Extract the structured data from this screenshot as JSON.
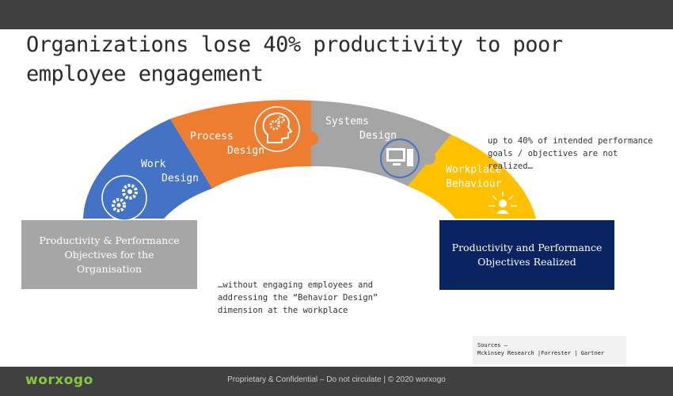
{
  "slide": {
    "title": "Organizations lose 40% productivity to poor employee engagement"
  },
  "arc": {
    "segments": [
      {
        "lines": [
          "Work",
          "Design"
        ],
        "color": "#4472c4",
        "icon": "gears-icon"
      },
      {
        "lines": [
          "Process",
          "Design"
        ],
        "color": "#ed7d31",
        "icon": "head-gears-icon"
      },
      {
        "lines": [
          "Systems",
          "Design"
        ],
        "color": "#a5a5a5",
        "icon": "computer-icon"
      },
      {
        "lines": [
          "Workplace",
          "Behaviour"
        ],
        "color": "#ffc000",
        "icon": "person-focus-icon"
      }
    ]
  },
  "boxes": {
    "left": {
      "lines": [
        "Productivity & Performance",
        "Objectives for the",
        "Organisation"
      ],
      "color": "#a6a6a6"
    },
    "right": {
      "lines": [
        "Productivity and Performance",
        "Objectives Realized"
      ],
      "color": "#0a2361"
    }
  },
  "notes": {
    "bottom": [
      "…without engaging employees and",
      "addressing the “Behavior Design”",
      "dimension at the workplace"
    ],
    "right": [
      "up to  40% of intended performance",
      "goals /  objectives are not",
      "realized…"
    ]
  },
  "sources": {
    "label": "Sources –",
    "text": "Mckinsey Research |Forrester | Gartner"
  },
  "footer": {
    "logo": "worxogo",
    "text": "Proprietary & Confidential – Do not circulate | © 2020 worxogo"
  }
}
